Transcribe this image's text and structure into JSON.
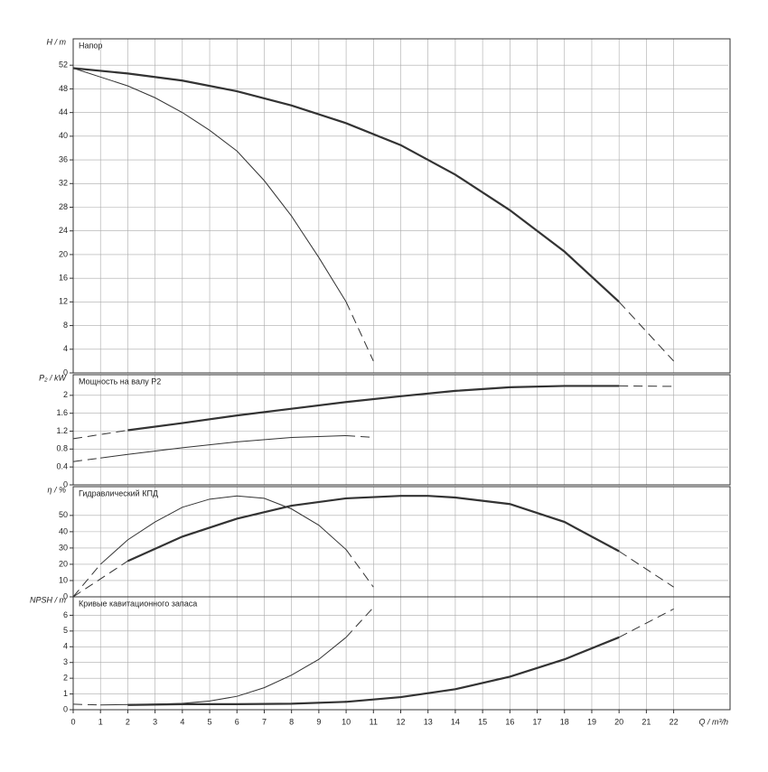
{
  "chart_data": [
    {
      "type": "line",
      "title": "Напор",
      "ylabel": "H / m",
      "xlim": [
        0,
        24
      ],
      "ylim": [
        0,
        56
      ],
      "yticks": [
        0,
        4,
        8,
        12,
        16,
        20,
        24,
        28,
        32,
        36,
        40,
        44,
        48,
        52
      ],
      "grid": true,
      "series": [
        {
          "color": "#333",
          "style": "solid",
          "width": 2.2,
          "x": [
            0,
            2,
            4,
            6,
            8,
            10,
            12,
            14,
            16,
            18,
            20
          ],
          "values": [
            51.5,
            50.6,
            49.4,
            47.6,
            45.2,
            42.2,
            38.5,
            33.5,
            27.5,
            20.5,
            12
          ]
        },
        {
          "color": "#333",
          "style": "dashed",
          "width": 1,
          "x": [
            20,
            21,
            22
          ],
          "values": [
            12,
            7,
            2
          ]
        },
        {
          "color": "#333",
          "style": "solid",
          "width": 1,
          "x": [
            0,
            1,
            2,
            3,
            4,
            5,
            6,
            7,
            8,
            9,
            10
          ],
          "values": [
            51.5,
            50,
            48.5,
            46.5,
            44,
            41,
            37.5,
            32.5,
            26.5,
            19.5,
            12
          ]
        },
        {
          "color": "#333",
          "style": "dashed",
          "width": 1,
          "x": [
            10,
            10.5,
            11
          ],
          "values": [
            12,
            7,
            2
          ]
        }
      ]
    },
    {
      "type": "line",
      "title": "Мощность на валу P2",
      "ylabel": "P₂ / kW",
      "xlim": [
        0,
        24
      ],
      "ylim": [
        0,
        2.4
      ],
      "yticks": [
        0,
        0.4,
        0.8,
        1.2,
        1.6,
        2
      ],
      "grid": true,
      "series": [
        {
          "color": "#333",
          "style": "dashed",
          "width": 1,
          "x": [
            0,
            2
          ],
          "values": [
            1.03,
            1.22
          ]
        },
        {
          "color": "#333",
          "style": "solid",
          "width": 2.2,
          "x": [
            2,
            4,
            6,
            8,
            10,
            12,
            14,
            16,
            18,
            20
          ],
          "values": [
            1.22,
            1.38,
            1.55,
            1.7,
            1.85,
            1.98,
            2.1,
            2.18,
            2.21,
            2.21
          ]
        },
        {
          "color": "#333",
          "style": "dashed",
          "width": 1,
          "x": [
            20,
            22
          ],
          "values": [
            2.21,
            2.2
          ]
        },
        {
          "color": "#333",
          "style": "dashed",
          "width": 1,
          "x": [
            0,
            1
          ],
          "values": [
            0.52,
            0.6
          ]
        },
        {
          "color": "#333",
          "style": "solid",
          "width": 1,
          "x": [
            1,
            2,
            4,
            6,
            8,
            10
          ],
          "values": [
            0.6,
            0.68,
            0.83,
            0.96,
            1.06,
            1.1
          ]
        },
        {
          "color": "#333",
          "style": "dashed",
          "width": 1,
          "x": [
            10,
            11
          ],
          "values": [
            1.1,
            1.06
          ]
        }
      ]
    },
    {
      "type": "line",
      "title": "Гидравлический КПД",
      "ylabel": "η / %",
      "xlim": [
        0,
        24
      ],
      "ylim": [
        0,
        66
      ],
      "yticks": [
        0,
        10,
        20,
        30,
        40,
        50
      ],
      "grid": true,
      "series": [
        {
          "color": "#333",
          "style": "dashed",
          "width": 1,
          "x": [
            0,
            2
          ],
          "values": [
            0,
            22
          ]
        },
        {
          "color": "#333",
          "style": "solid",
          "width": 2.2,
          "x": [
            2,
            4,
            6,
            8,
            10,
            12,
            13,
            14,
            16,
            18,
            20
          ],
          "values": [
            22,
            37,
            48,
            56,
            60.5,
            62,
            62,
            61,
            57,
            46,
            28
          ]
        },
        {
          "color": "#333",
          "style": "dashed",
          "width": 1,
          "x": [
            20,
            22
          ],
          "values": [
            28,
            6
          ]
        },
        {
          "color": "#333",
          "style": "dashed",
          "width": 1,
          "x": [
            0,
            1
          ],
          "values": [
            0,
            20
          ]
        },
        {
          "color": "#333",
          "style": "solid",
          "width": 1,
          "x": [
            1,
            2,
            3,
            4,
            5,
            6,
            7,
            8,
            9,
            10
          ],
          "values": [
            20,
            35,
            46,
            55,
            60,
            62,
            60.5,
            54,
            44,
            29
          ]
        },
        {
          "color": "#333",
          "style": "dashed",
          "width": 1,
          "x": [
            10,
            11
          ],
          "values": [
            29,
            6
          ]
        }
      ]
    },
    {
      "type": "line",
      "title": "Кривые кавитационного запаса",
      "ylabel": "NPSH / m",
      "xlabel": "Q / m³/h",
      "xlim": [
        0,
        24
      ],
      "ylim": [
        0,
        7
      ],
      "yticks": [
        0,
        1,
        2,
        3,
        4,
        5,
        6
      ],
      "grid": true,
      "xticks": [
        0,
        1,
        2,
        3,
        4,
        5,
        6,
        7,
        8,
        9,
        10,
        11,
        12,
        13,
        14,
        15,
        16,
        17,
        18,
        19,
        20,
        21,
        22
      ],
      "series": [
        {
          "color": "#333",
          "style": "dashed",
          "width": 1,
          "x": [
            0,
            1
          ],
          "values": [
            0.35,
            0.3
          ]
        },
        {
          "color": "#333",
          "style": "solid",
          "width": 2.2,
          "x": [
            2,
            4,
            6,
            8,
            10,
            12,
            14,
            16,
            18,
            20
          ],
          "values": [
            0.3,
            0.35,
            0.35,
            0.38,
            0.5,
            0.8,
            1.3,
            2.1,
            3.2,
            4.6
          ]
        },
        {
          "color": "#333",
          "style": "dashed",
          "width": 1,
          "x": [
            20,
            22
          ],
          "values": [
            4.6,
            6.4
          ]
        },
        {
          "color": "#333",
          "style": "solid",
          "width": 1,
          "x": [
            1,
            3,
            4,
            5,
            6,
            7,
            8,
            9,
            10
          ],
          "values": [
            0.3,
            0.35,
            0.4,
            0.55,
            0.85,
            1.4,
            2.2,
            3.2,
            4.6
          ]
        },
        {
          "color": "#333",
          "style": "dashed",
          "width": 1,
          "x": [
            10,
            11
          ],
          "values": [
            4.6,
            6.5
          ]
        }
      ]
    }
  ]
}
